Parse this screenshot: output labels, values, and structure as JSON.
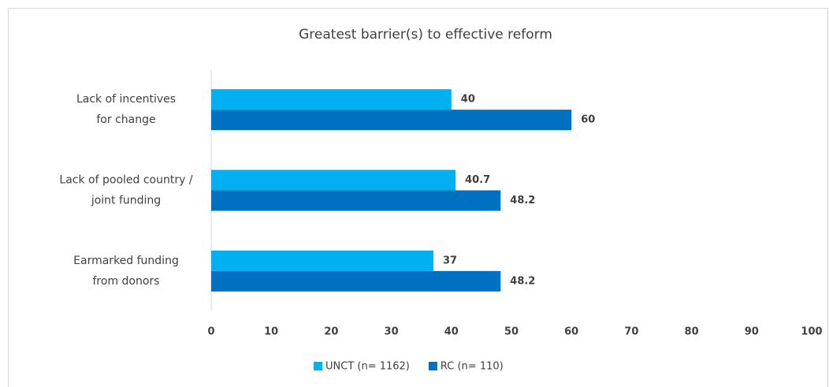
{
  "chart_data": {
    "type": "bar",
    "orientation": "horizontal",
    "title": "Greatest barrier(s) to effective reform",
    "categories": [
      [
        "Lack of incentives",
        "for change"
      ],
      [
        "Lack of pooled country /",
        "joint funding"
      ],
      [
        "Earmarked funding",
        "from donors"
      ]
    ],
    "series": [
      {
        "name": "UNCT (n= 1162)",
        "color": "#00b0f0",
        "values": [
          40,
          40.7,
          37
        ]
      },
      {
        "name": "RC (n= 110)",
        "color": "#0070c0",
        "values": [
          60,
          48.2,
          48.2
        ]
      }
    ],
    "xlim": [
      0,
      100
    ],
    "xticks": [
      0,
      10,
      20,
      30,
      40,
      50,
      60,
      70,
      80,
      90,
      100
    ],
    "grid": false,
    "legend": "bottom"
  }
}
